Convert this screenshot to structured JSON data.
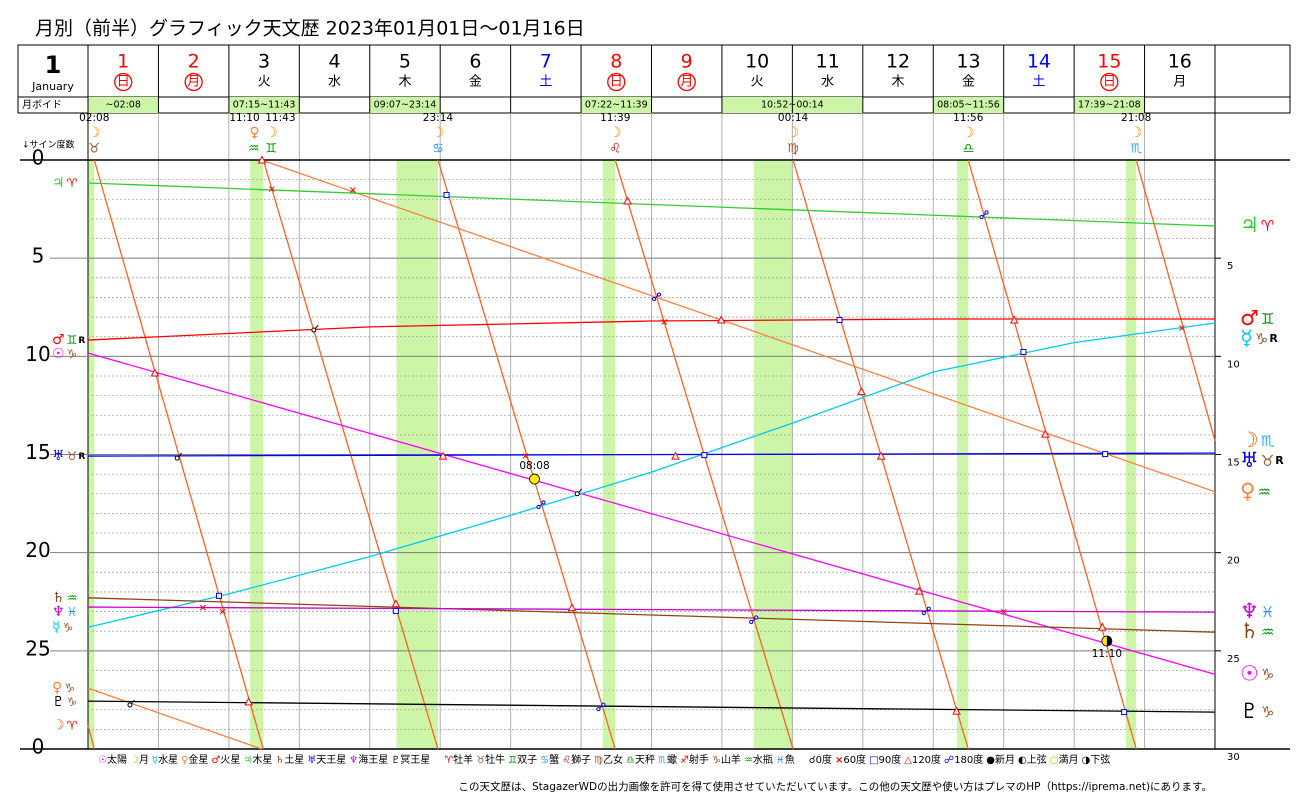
{
  "title": "月別（前半）グラフィック天文歴  2023年01月01日～01月16日",
  "month_num": 1,
  "month_name": "January",
  "void_header": "月ボイド",
  "degree_header": "↓サイン度数",
  "note": "この天文歴は、StagazerWDの出力画像を許可を得て使用させていただいています。この他の天文歴や使い方はプレマのHP（https://iprema.net)にあります。",
  "chart_data": {
    "type": "line",
    "xlim": [
      0,
      16
    ],
    "ylim": [
      0,
      30
    ],
    "yticks": [
      0,
      5,
      10,
      15,
      20,
      25,
      {
        "value": 30,
        "label": "0"
      }
    ],
    "y2ticks": [
      5,
      10,
      15,
      20,
      25,
      30
    ],
    "grid": true,
    "days": [
      {
        "num": 1,
        "wd": "日",
        "color": "#ff0000",
        "circled": true
      },
      {
        "num": 2,
        "wd": "月",
        "color": "#ff0000",
        "circled": true
      },
      {
        "num": 3,
        "wd": "火",
        "color": "#000000",
        "circled": false
      },
      {
        "num": 4,
        "wd": "水",
        "color": "#000000",
        "circled": false
      },
      {
        "num": 5,
        "wd": "木",
        "color": "#000000",
        "circled": false
      },
      {
        "num": 6,
        "wd": "金",
        "color": "#000000",
        "circled": false
      },
      {
        "num": 7,
        "wd": "土",
        "color": "#0000ff",
        "circled": false
      },
      {
        "num": 8,
        "wd": "日",
        "color": "#ff0000",
        "circled": true
      },
      {
        "num": 9,
        "wd": "月",
        "color": "#ff0000",
        "circled": true
      },
      {
        "num": 10,
        "wd": "火",
        "color": "#000000",
        "circled": false
      },
      {
        "num": 11,
        "wd": "水",
        "color": "#000000",
        "circled": false
      },
      {
        "num": 12,
        "wd": "木",
        "color": "#000000",
        "circled": false
      },
      {
        "num": 13,
        "wd": "金",
        "color": "#000000",
        "circled": false
      },
      {
        "num": 14,
        "wd": "土",
        "color": "#0000ff",
        "circled": false
      },
      {
        "num": 15,
        "wd": "日",
        "color": "#ff0000",
        "circled": true
      },
      {
        "num": 16,
        "wd": "月",
        "color": "#000000",
        "circled": false
      }
    ],
    "void_color": "#ccf5a8",
    "voids": [
      {
        "day": 1,
        "label": "~02:08"
      },
      {
        "day": 3,
        "label": "07:15~11:43"
      },
      {
        "day": 5,
        "label": "09:07~23:14"
      },
      {
        "day": 8,
        "label": "07:22~11:39"
      },
      {
        "day": 10,
        "label": "10:52~00:14"
      },
      {
        "day": 13,
        "label": "08:05~11:56"
      },
      {
        "day": 15,
        "label": "17:39~21:08"
      }
    ],
    "ingresses": [
      {
        "day": 1,
        "time": "02:08",
        "planet": "☽",
        "sign": "♉",
        "color": "#ff8c00"
      },
      {
        "day": 3,
        "time": "11:10",
        "planet": "♀",
        "sign": "♒",
        "color": "#ff8040"
      },
      {
        "day": 3,
        "time": "11:43",
        "planet": "☽",
        "sign": "♊",
        "color": "#ff8c00"
      },
      {
        "day": 5,
        "time": "23:14",
        "planet": "☽",
        "sign": "♋",
        "color": "#ff8c00"
      },
      {
        "day": 8,
        "time": "11:39",
        "planet": "☽",
        "sign": "♌",
        "color": "#ff8c00"
      },
      {
        "day": 11,
        "time": "00:14",
        "planet": "☽",
        "sign": "♍",
        "color": "#ff8c00"
      },
      {
        "day": 13,
        "time": "11:56",
        "planet": "☽",
        "sign": "♎",
        "color": "#ff8c00"
      },
      {
        "day": 15,
        "time": "21:08",
        "planet": "☽",
        "sign": "♏",
        "color": "#ff8c00"
      }
    ],
    "series": [
      {
        "planet": "☽",
        "color": "#ff6020",
        "start_sign": "♈",
        "end_sign": "♏",
        "x": [
          0,
          0.089,
          0.089,
          0.089,
          2.488,
          2.488,
          2.488,
          4.968,
          4.968,
          4.968,
          7.485,
          7.485,
          7.485,
          10.01,
          10.01,
          10.01,
          12.497,
          12.497,
          12.497,
          14.881,
          14.881,
          14.881,
          16
        ],
        "values": [
          28.8,
          30,
          null,
          0,
          30,
          null,
          0,
          30,
          null,
          0,
          30,
          null,
          0,
          30,
          null,
          0,
          30,
          null,
          0,
          30,
          null,
          0,
          14.3
        ]
      },
      {
        "planet": "♀",
        "color": "#ff8040",
        "start_sign": "♑",
        "end_sign": "♒",
        "x": [
          0,
          2.465,
          2.465,
          2.465,
          16
        ],
        "values": [
          26.9,
          30,
          null,
          0,
          16.9
        ]
      },
      {
        "planet": "☉",
        "color": "#ff00ff",
        "start_sign": "♑",
        "end_sign": "♑",
        "x": [
          0,
          16
        ],
        "values": [
          9.83,
          26.2
        ]
      },
      {
        "planet": "☿",
        "color": "#00ccee",
        "start_sign": "♑",
        "end_sign": "♑",
        "end_retro": "R",
        "x": [
          0,
          2,
          4,
          6,
          8,
          10,
          12,
          14,
          16
        ],
        "values": [
          23.8,
          22.1,
          20.2,
          18.1,
          15.9,
          13.4,
          10.8,
          9.3,
          8.3
        ]
      },
      {
        "planet": "♂",
        "color": "#ff0000",
        "start_sign": "♊",
        "start_retro": "R",
        "end_sign": "♊",
        "x": [
          0,
          4,
          8,
          12,
          16
        ],
        "values": [
          9.17,
          8.5,
          8.2,
          8.1,
          8.1
        ]
      },
      {
        "planet": "♃",
        "color": "#33cc33",
        "start_sign": "♈",
        "end_sign": "♈",
        "x": [
          0,
          16
        ],
        "values": [
          1.17,
          3.36
        ]
      },
      {
        "planet": "♄",
        "color": "#8b4513",
        "start_sign": "♒",
        "end_sign": "♒",
        "x": [
          0,
          16
        ],
        "values": [
          22.3,
          24.05
        ]
      },
      {
        "planet": "♅",
        "color": "#0000ff",
        "start_sign": "♉",
        "start_retro": "R",
        "end_sign": "♉",
        "end_retro": "R",
        "x": [
          0,
          16
        ],
        "values": [
          15.08,
          14.93
        ]
      },
      {
        "planet": "♆",
        "color": "#cc00cc",
        "start_sign": "♓",
        "end_sign": "♓",
        "x": [
          0,
          16
        ],
        "values": [
          22.77,
          23.03
        ]
      },
      {
        "planet": "♇",
        "color": "#000000",
        "start_sign": "♑",
        "end_sign": "♑",
        "x": [
          0,
          16
        ],
        "values": [
          27.56,
          28.12
        ]
      }
    ],
    "aspect_colors": {
      "conjunction": "#000000",
      "sextile": "#ff0000",
      "square": "#0000ff",
      "trine": "#ff0000",
      "opposition": "#0000ff"
    },
    "aspects": [
      {
        "day": 0.61,
        "deg": 27.66,
        "kind": "conjunction"
      },
      {
        "day": 1.28,
        "deg": 15.08,
        "kind": "conjunction"
      },
      {
        "day": 3.22,
        "deg": 8.56,
        "kind": "conjunction"
      },
      {
        "day": 6.96,
        "deg": 16.9,
        "kind": "conjunction"
      },
      {
        "day": 1.63,
        "deg": 22.8,
        "kind": "sextile"
      },
      {
        "day": 1.91,
        "deg": 23.0,
        "kind": "sextile"
      },
      {
        "day": 2.61,
        "deg": 1.48,
        "kind": "sextile"
      },
      {
        "day": 3.76,
        "deg": 1.53,
        "kind": "sextile"
      },
      {
        "day": 6.21,
        "deg": 15.08,
        "kind": "sextile"
      },
      {
        "day": 8.18,
        "deg": 8.25,
        "kind": "sextile"
      },
      {
        "day": 13.0,
        "deg": 23.0,
        "kind": "sextile"
      },
      {
        "day": 15.53,
        "deg": 8.56,
        "kind": "sextile"
      },
      {
        "day": 1.86,
        "deg": 22.2,
        "kind": "square"
      },
      {
        "day": 4.37,
        "deg": 22.97,
        "kind": "square"
      },
      {
        "day": 5.09,
        "deg": 1.78,
        "kind": "square"
      },
      {
        "day": 8.75,
        "deg": 15.03,
        "kind": "square"
      },
      {
        "day": 10.67,
        "deg": 8.15,
        "kind": "square"
      },
      {
        "day": 13.28,
        "deg": 9.78,
        "kind": "square"
      },
      {
        "day": 14.44,
        "deg": 14.98,
        "kind": "square"
      },
      {
        "day": 14.71,
        "deg": 28.12,
        "kind": "square"
      },
      {
        "day": 0.95,
        "deg": 10.85,
        "kind": "trine"
      },
      {
        "day": 2.28,
        "deg": 27.6,
        "kind": "trine"
      },
      {
        "day": 2.47,
        "deg": 0,
        "kind": "trine"
      },
      {
        "day": 4.37,
        "deg": 22.6,
        "kind": "trine"
      },
      {
        "day": 5.04,
        "deg": 15.08,
        "kind": "trine"
      },
      {
        "day": 6.87,
        "deg": 22.8,
        "kind": "trine"
      },
      {
        "day": 7.66,
        "deg": 2.09,
        "kind": "trine"
      },
      {
        "day": 8.34,
        "deg": 15.08,
        "kind": "trine"
      },
      {
        "day": 8.99,
        "deg": 8.15,
        "kind": "trine"
      },
      {
        "day": 10.98,
        "deg": 11.8,
        "kind": "trine"
      },
      {
        "day": 11.26,
        "deg": 15.08,
        "kind": "trine"
      },
      {
        "day": 11.8,
        "deg": 21.96,
        "kind": "trine"
      },
      {
        "day": 12.33,
        "deg": 28.07,
        "kind": "trine"
      },
      {
        "day": 13.15,
        "deg": 8.15,
        "kind": "trine"
      },
      {
        "day": 13.59,
        "deg": 13.96,
        "kind": "trine"
      },
      {
        "day": 14.4,
        "deg": 23.79,
        "kind": "trine"
      },
      {
        "day": 6.43,
        "deg": 17.57,
        "kind": "opposition"
      },
      {
        "day": 8.07,
        "deg": 6.98,
        "kind": "opposition"
      },
      {
        "day": 7.28,
        "deg": 27.87,
        "kind": "opposition"
      },
      {
        "day": 9.45,
        "deg": 23.43,
        "kind": "opposition"
      },
      {
        "day": 11.9,
        "deg": 22.98,
        "kind": "opposition"
      },
      {
        "day": 12.72,
        "deg": 2.8,
        "kind": "opposition"
      }
    ],
    "phases": [
      {
        "day": 6.339,
        "deg": 16.25,
        "kind": "full",
        "label": "08:08",
        "color": "#ffee00"
      },
      {
        "day": 14.465,
        "deg": 24.5,
        "kind": "last_quarter",
        "label": "11:10",
        "color": "#ffee00"
      }
    ],
    "sign_colors": {
      "♈": "#ff0000",
      "♉": "#a0522d",
      "♊": "#009900",
      "♋": "#1e90ff",
      "♌": "#e00000",
      "♍": "#a0522d",
      "♎": "#009900",
      "♏": "#33aaff",
      "♐": "#e00000",
      "♑": "#a0522d",
      "♒": "#009900",
      "♓": "#1e90ff"
    },
    "legend": {
      "planets": [
        {
          "glyph": "☉",
          "text": "太陽",
          "color": "#ff00ff"
        },
        {
          "glyph": "☽",
          "text": "月",
          "color": "#ff8c00"
        },
        {
          "glyph": "☿",
          "text": "水星",
          "color": "#00bfff"
        },
        {
          "glyph": "♀",
          "text": "金星",
          "color": "#ff8040"
        },
        {
          "glyph": "♂",
          "text": "火星",
          "color": "#ff0000"
        },
        {
          "glyph": "♃",
          "text": "木星",
          "color": "#33cc33"
        },
        {
          "glyph": "♄",
          "text": "土星",
          "color": "#8b4513"
        },
        {
          "glyph": "♅",
          "text": "天王星",
          "color": "#0000ff"
        },
        {
          "glyph": "♆",
          "text": "海王星",
          "color": "#cc00cc"
        },
        {
          "glyph": "♇",
          "text": "冥王星",
          "color": "#000000"
        }
      ],
      "signs": [
        {
          "glyph": "♈",
          "text": "牡羊"
        },
        {
          "glyph": "♉",
          "text": "牡牛"
        },
        {
          "glyph": "♊",
          "text": "双子"
        },
        {
          "glyph": "♋",
          "text": "蟹"
        },
        {
          "glyph": "♌",
          "text": "獅子"
        },
        {
          "glyph": "♍",
          "text": "乙女"
        },
        {
          "glyph": "♎",
          "text": "天秤"
        },
        {
          "glyph": "♏",
          "text": "蠍"
        },
        {
          "glyph": "♐",
          "text": "射手"
        },
        {
          "glyph": "♑",
          "text": "山羊"
        },
        {
          "glyph": "♒",
          "text": "水瓶"
        },
        {
          "glyph": "♓",
          "text": "魚"
        }
      ],
      "aspects": [
        {
          "glyph": "☌",
          "text": "0度",
          "color": "#000000"
        },
        {
          "glyph": "×",
          "text": "60度",
          "color": "#ff0000"
        },
        {
          "glyph": "□",
          "text": "90度",
          "color": "#0000ff"
        },
        {
          "glyph": "△",
          "text": "120度",
          "color": "#ff0000"
        },
        {
          "glyph": "☍",
          "text": "180度",
          "color": "#0000ff"
        },
        {
          "glyph": "●",
          "text": "新月",
          "color": "#000000"
        },
        {
          "glyph": "◐",
          "text": "上弦",
          "color": "#000000"
        },
        {
          "glyph": "○",
          "text": "満月",
          "color": "#d4b800"
        },
        {
          "glyph": "◑",
          "text": "下弦",
          "color": "#000000"
        }
      ]
    }
  }
}
